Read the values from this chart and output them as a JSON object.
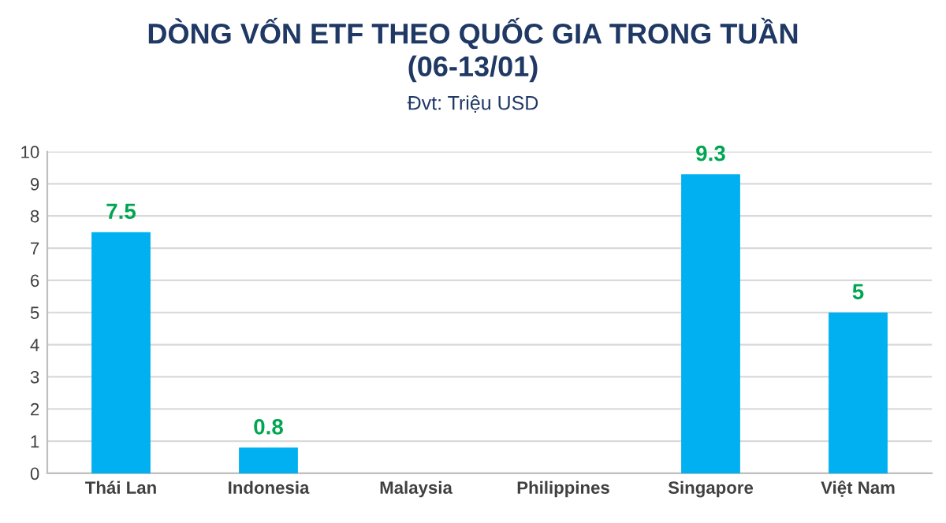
{
  "chart_data": {
    "type": "bar",
    "title": "DÒNG VỐN ETF THEO QUỐC GIA TRONG TUẦN\n(06-13/01)",
    "subtitle": "Đvt: Triệu USD",
    "categories": [
      "Thái Lan",
      "Indonesia",
      "Malaysia",
      "Philippines",
      "Singapore",
      "Việt Nam"
    ],
    "values": [
      7.5,
      0.8,
      0,
      0,
      9.3,
      5
    ],
    "value_labels": [
      "7.5",
      "0.8",
      null,
      null,
      "9.3",
      "5"
    ],
    "color": "#00b0f0",
    "ylim": [
      0,
      10
    ],
    "yticks": [
      0,
      1,
      2,
      3,
      4,
      5,
      6,
      7,
      8,
      9,
      10
    ],
    "grid": "y"
  }
}
